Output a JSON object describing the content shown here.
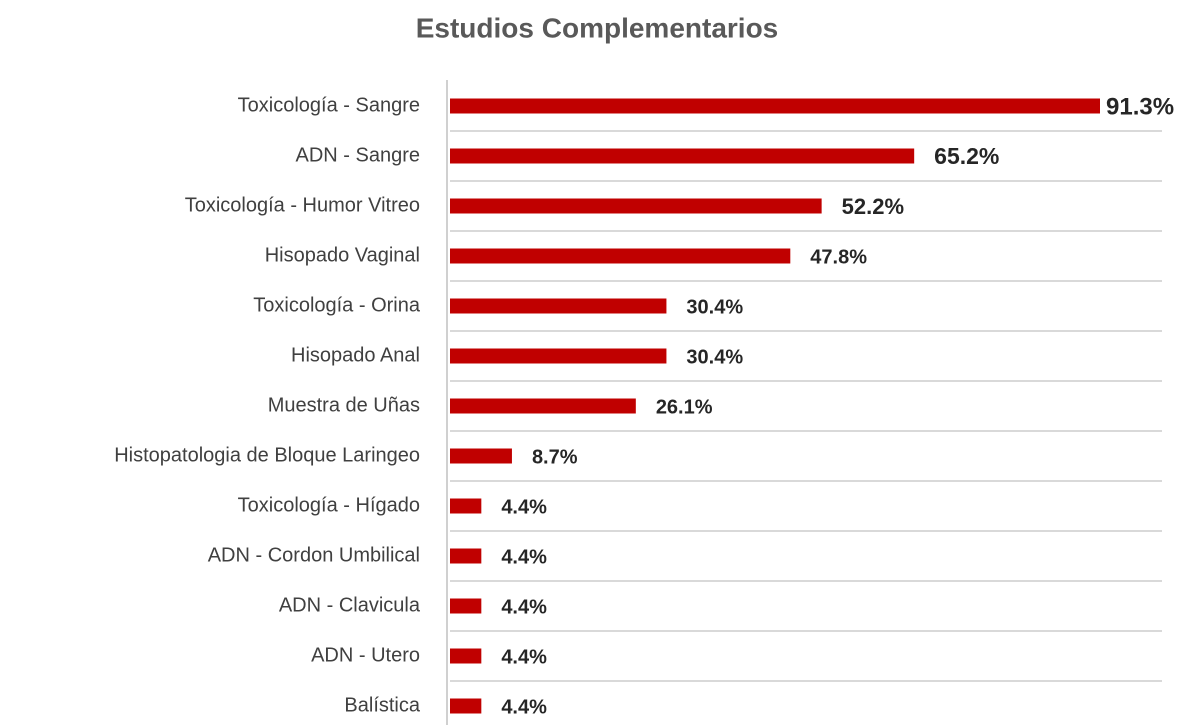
{
  "chart_data": {
    "type": "bar",
    "orientation": "horizontal",
    "title": "Estudios Complementarios",
    "categories": [
      "Toxicología - Sangre",
      "ADN - Sangre",
      "Toxicología - Humor Vitreo",
      "Hisopado Vaginal",
      "Toxicología - Orina",
      "Hisopado Anal",
      "Muestra de Uñas",
      "Histopatologia de Bloque Laringeo",
      "Toxicología - Hígado",
      "ADN - Cordon Umbilical",
      "ADN - Clavicula",
      "ADN - Utero",
      "Balística"
    ],
    "values": [
      91.3,
      65.2,
      52.2,
      47.8,
      30.4,
      30.4,
      26.1,
      8.7,
      4.4,
      4.4,
      4.4,
      4.4,
      4.4
    ],
    "value_labels": [
      "91.3%",
      "65.2%",
      "52.2%",
      "47.8%",
      "30.4%",
      "30.4%",
      "26.1%",
      "8.7%",
      "4.4%",
      "4.4%",
      "4.4%",
      "4.4%",
      "4.4%"
    ],
    "color": "#c00000"
  }
}
